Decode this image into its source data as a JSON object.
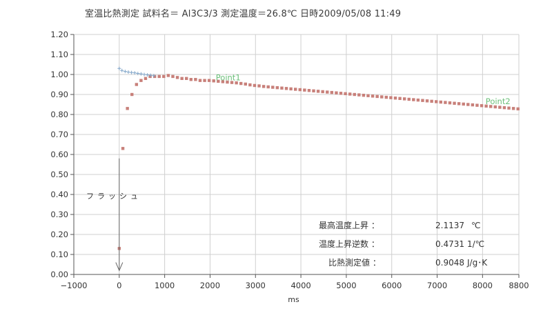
{
  "chart_data": {
    "type": "scatter",
    "title": "室温比熱測定  試料名＝ Al3C3/3 測定温度＝26.8℃ 日時2009/05/08 11:49",
    "xlabel": "ms",
    "ylabel": "",
    "xlim": [
      -1000,
      8800
    ],
    "ylim": [
      0.0,
      1.2
    ],
    "grid": true,
    "x_ticks": [
      -1000,
      0,
      1000,
      2000,
      3000,
      4000,
      5000,
      6000,
      7000,
      8000,
      8800
    ],
    "x_tick_labels": [
      "−1000",
      "0",
      "1000",
      "2000",
      "3000",
      "4000",
      "5000",
      "6000",
      "7000",
      "8000",
      "8800"
    ],
    "y_ticks": [
      0.0,
      0.1,
      0.2,
      0.3,
      0.4,
      0.5,
      0.6,
      0.7,
      0.8,
      0.9,
      1.0,
      1.1,
      1.2
    ],
    "y_tick_labels": [
      "0.00",
      "0.10",
      "0.20",
      "0.30",
      "0.40",
      "0.50",
      "0.60",
      "0.70",
      "0.80",
      "0.90",
      "1.00",
      "1.10",
      "1.20"
    ],
    "series": [
      {
        "color": "#c8807a",
        "marker": "square",
        "x": [
          0,
          80,
          180,
          280,
          380,
          480,
          580,
          680,
          780,
          880,
          980,
          1080,
          1180,
          1280,
          1380,
          1480,
          1580,
          1680,
          1780,
          1880,
          1980,
          2080,
          2180,
          2280,
          2380,
          2480,
          2580,
          2680,
          2780,
          2880,
          2980,
          3080,
          3180,
          3280,
          3380,
          3480,
          3580,
          3680,
          3780,
          3880,
          3980,
          4080,
          4180,
          4280,
          4380,
          4480,
          4580,
          4680,
          4780,
          4880,
          4980,
          5080,
          5180,
          5280,
          5380,
          5480,
          5580,
          5680,
          5780,
          5880,
          5980,
          6080,
          6180,
          6280,
          6380,
          6480,
          6580,
          6680,
          6780,
          6880,
          6980,
          7080,
          7180,
          7280,
          7380,
          7480,
          7580,
          7680,
          7780,
          7880,
          7980,
          8080,
          8180,
          8280,
          8380,
          8480,
          8580,
          8680,
          8780
        ],
        "y": [
          0.13,
          0.63,
          0.83,
          0.9,
          0.95,
          0.97,
          0.98,
          0.99,
          0.99,
          0.99,
          0.99,
          0.995,
          0.99,
          0.985,
          0.98,
          0.98,
          0.975,
          0.975,
          0.97,
          0.97,
          0.97,
          0.968,
          0.966,
          0.964,
          0.962,
          0.96,
          0.958,
          0.955,
          0.952,
          0.948,
          0.945,
          0.943,
          0.94,
          0.938,
          0.936,
          0.934,
          0.932,
          0.93,
          0.928,
          0.926,
          0.924,
          0.922,
          0.92,
          0.918,
          0.916,
          0.914,
          0.912,
          0.91,
          0.908,
          0.906,
          0.904,
          0.902,
          0.9,
          0.898,
          0.896,
          0.894,
          0.892,
          0.89,
          0.888,
          0.886,
          0.884,
          0.882,
          0.88,
          0.878,
          0.876,
          0.874,
          0.872,
          0.87,
          0.868,
          0.866,
          0.864,
          0.862,
          0.86,
          0.858,
          0.856,
          0.854,
          0.852,
          0.85,
          0.848,
          0.846,
          0.844,
          0.842,
          0.84,
          0.838,
          0.836,
          0.834,
          0.832,
          0.83,
          0.828
        ]
      },
      {
        "color": "#7fa4c8",
        "marker": "plus",
        "x": [
          0,
          60,
          130,
          200,
          270,
          340,
          410,
          480,
          550,
          620,
          690,
          760
        ],
        "y": [
          1.03,
          1.02,
          1.015,
          1.012,
          1.01,
          1.008,
          1.005,
          1.003,
          1.0,
          0.998,
          0.996,
          0.994
        ]
      }
    ],
    "annotations": {
      "point1": {
        "label": "Point1",
        "x": 2400,
        "y": 0.985
      },
      "point2": {
        "label": "Point2",
        "x": 8250,
        "y": 0.865
      },
      "flash": {
        "label": "フラッシュ",
        "x": 0
      }
    },
    "results": [
      {
        "label": "最高温度上昇 ：",
        "value": "2.1137",
        "unit": "℃"
      },
      {
        "label": "温度上昇逆数 ：",
        "value": "0.4731",
        "unit": "1/℃"
      },
      {
        "label": "比熱測定値 ：",
        "value": "0.9048",
        "unit": "J/g･K"
      }
    ],
    "colors": {
      "grid": "#cfcfcf",
      "axis": "#555555",
      "point_label": "#6cc07a"
    }
  }
}
